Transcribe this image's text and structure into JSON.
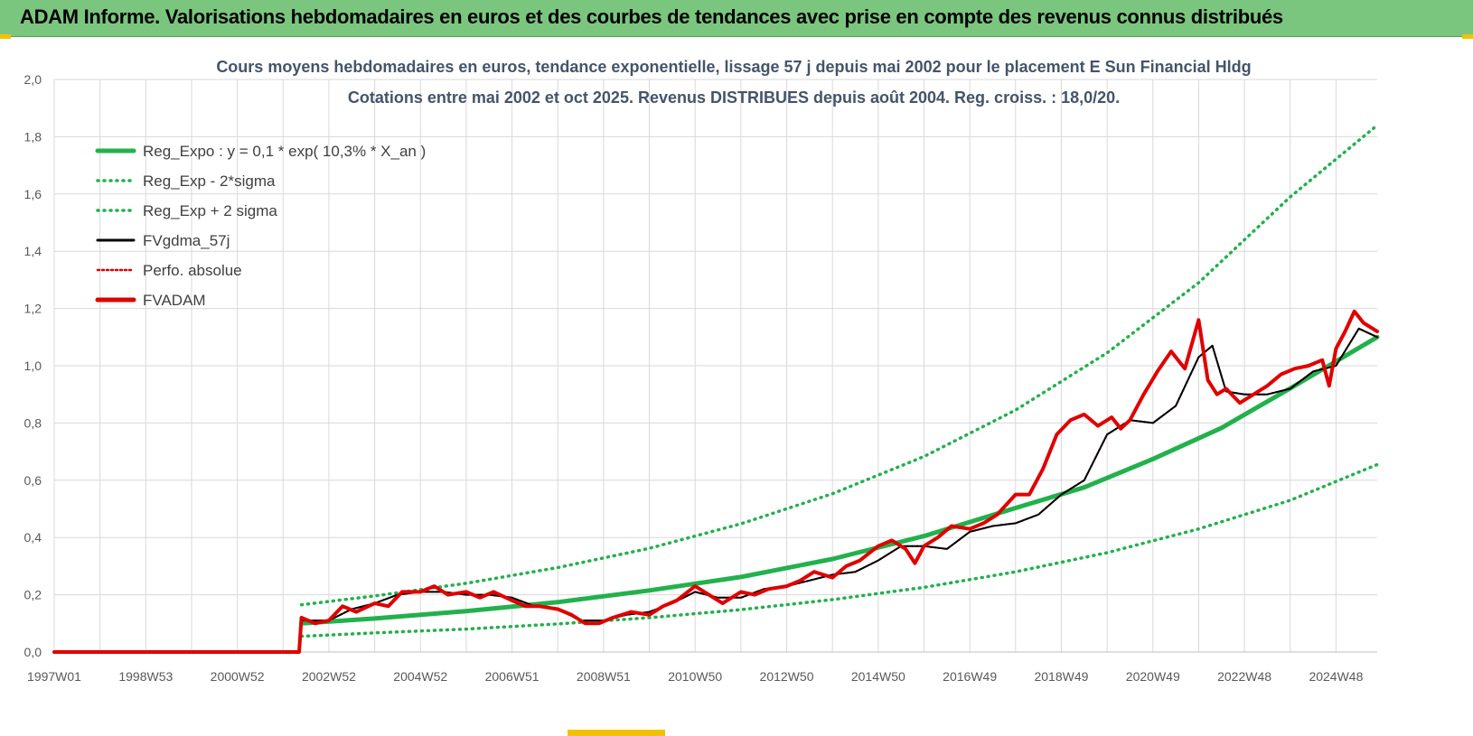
{
  "header": {
    "title": "ADAM Informe. Valorisations hebdomadaires en euros et des courbes de tendances avec prise en compte des revenus connus distribués"
  },
  "chart_data": {
    "type": "line",
    "title": "Cours moyens hebdomadaires en euros, tendance exponentielle, lissage 57 j depuis mai 2002 pour le placement E Sun Financial Hldg",
    "subtitle": "Cotations entre mai 2002 et oct 2025.  Revenus DISTRIBUES depuis août 2004. Reg. croiss. : 18,0/20.",
    "xlabel": "",
    "ylabel": "",
    "ylim": [
      0,
      2.0
    ],
    "xlim": [
      1997.0,
      2025.9
    ],
    "y_ticks": [
      "0,0",
      "0,2",
      "0,4",
      "0,6",
      "0,8",
      "1,0",
      "1,2",
      "1,4",
      "1,6",
      "1,8",
      "2,0"
    ],
    "x_ticks": [
      {
        "label": "1997W01",
        "x": 1997.0
      },
      {
        "label": "1998W53",
        "x": 1999.0
      },
      {
        "label": "2000W52",
        "x": 2001.0
      },
      {
        "label": "2002W52",
        "x": 2003.0
      },
      {
        "label": "2004W52",
        "x": 2005.0
      },
      {
        "label": "2006W51",
        "x": 2007.0
      },
      {
        "label": "2008W51",
        "x": 2009.0
      },
      {
        "label": "2010W50",
        "x": 2011.0
      },
      {
        "label": "2012W50",
        "x": 2013.0
      },
      {
        "label": "2014W50",
        "x": 2015.0
      },
      {
        "label": "2016W49",
        "x": 2017.0
      },
      {
        "label": "2018W49",
        "x": 2019.0
      },
      {
        "label": "2020W49",
        "x": 2021.0
      },
      {
        "label": "2022W48",
        "x": 2023.0
      },
      {
        "label": "2024W48",
        "x": 2025.0
      }
    ],
    "grid": true,
    "legend_position": "top-left",
    "series": [
      {
        "name": "Reg_Expo : y = 0,1 * exp( 10,3% *  X_an )",
        "color": "#22b14c",
        "style": "solid",
        "x": [
          2002.4,
          2004.0,
          2006.0,
          2008.0,
          2010.0,
          2012.0,
          2014.0,
          2016.0,
          2018.0,
          2019.5,
          2021.0,
          2022.5,
          2024.0,
          2025.9
        ],
        "values": [
          0.1,
          0.117,
          0.143,
          0.174,
          0.215,
          0.262,
          0.325,
          0.405,
          0.503,
          0.575,
          0.674,
          0.783,
          0.921,
          1.1
        ]
      },
      {
        "name": "Reg_Exp - 2*sigma",
        "color": "#22b14c",
        "style": "dotted",
        "x": [
          2002.4,
          2004.0,
          2006.0,
          2008.0,
          2010.0,
          2012.0,
          2014.0,
          2016.0,
          2018.0,
          2020.0,
          2022.0,
          2024.0,
          2025.9
        ],
        "values": [
          0.055,
          0.067,
          0.08,
          0.098,
          0.12,
          0.148,
          0.183,
          0.226,
          0.28,
          0.347,
          0.43,
          0.53,
          0.655
        ]
      },
      {
        "name": "Reg_Exp + 2 sigma",
        "color": "#22b14c",
        "style": "dotted",
        "x": [
          2002.4,
          2004.0,
          2006.0,
          2008.0,
          2010.0,
          2012.0,
          2014.0,
          2016.0,
          2018.0,
          2020.0,
          2022.0,
          2024.0,
          2025.9
        ],
        "values": [
          0.165,
          0.196,
          0.24,
          0.295,
          0.362,
          0.448,
          0.553,
          0.683,
          0.845,
          1.045,
          1.29,
          1.59,
          1.84
        ]
      },
      {
        "name": "FVgdma_57j",
        "color": "#000000",
        "style": "solid",
        "x": [
          1997.0,
          2002.35,
          2002.4,
          2003.0,
          2003.5,
          2004.0,
          2004.5,
          2005.0,
          2005.5,
          2006.0,
          2006.5,
          2007.0,
          2007.5,
          2008.0,
          2008.5,
          2009.0,
          2009.5,
          2010.0,
          2010.5,
          2011.0,
          2011.5,
          2012.0,
          2012.5,
          2013.0,
          2013.5,
          2014.0,
          2014.5,
          2015.0,
          2015.5,
          2016.0,
          2016.5,
          2017.0,
          2017.5,
          2018.0,
          2018.5,
          2019.0,
          2019.5,
          2020.0,
          2020.5,
          2021.0,
          2021.5,
          2022.0,
          2022.3,
          2022.6,
          2023.0,
          2023.5,
          2024.0,
          2024.5,
          2025.0,
          2025.5,
          2025.9
        ],
        "values": [
          0.0,
          0.0,
          0.11,
          0.11,
          0.15,
          0.17,
          0.2,
          0.21,
          0.21,
          0.2,
          0.2,
          0.19,
          0.16,
          0.15,
          0.11,
          0.11,
          0.13,
          0.14,
          0.17,
          0.21,
          0.19,
          0.19,
          0.22,
          0.23,
          0.25,
          0.27,
          0.28,
          0.32,
          0.37,
          0.37,
          0.36,
          0.42,
          0.44,
          0.45,
          0.48,
          0.55,
          0.6,
          0.76,
          0.81,
          0.8,
          0.86,
          1.03,
          1.07,
          0.91,
          0.9,
          0.9,
          0.92,
          0.98,
          1.0,
          1.13,
          1.1
        ]
      },
      {
        "name": "Perfo. absolue",
        "color": "#e00000",
        "style": "dotted",
        "x": [
          1997.0,
          2002.35,
          2002.4,
          2003.0,
          2003.5,
          2004.0,
          2004.5,
          2005.0,
          2005.5,
          2006.0,
          2006.5,
          2007.0,
          2007.5,
          2008.0,
          2008.5,
          2009.0,
          2009.5,
          2010.0,
          2010.5,
          2011.0,
          2011.5,
          2012.0,
          2012.5,
          2013.0,
          2013.5,
          2014.0,
          2014.5,
          2015.0,
          2015.5,
          2016.0,
          2016.5,
          2017.0,
          2017.5,
          2018.0,
          2018.5,
          2019.0,
          2019.5,
          2020.0,
          2020.5,
          2021.0,
          2021.5,
          2022.0,
          2022.3,
          2022.6,
          2023.0,
          2023.5,
          2024.0,
          2024.5,
          2025.0,
          2025.5,
          2025.9
        ],
        "values": [
          0.0,
          0.0,
          0.11,
          0.11,
          0.15,
          0.17,
          0.2,
          0.21,
          0.21,
          0.2,
          0.2,
          0.19,
          0.16,
          0.15,
          0.11,
          0.11,
          0.13,
          0.14,
          0.17,
          0.21,
          0.19,
          0.19,
          0.22,
          0.23,
          0.25,
          0.27,
          0.28,
          0.32,
          0.37,
          0.37,
          0.36,
          0.42,
          0.44,
          0.45,
          0.48,
          0.55,
          0.6,
          0.76,
          0.81,
          0.8,
          0.86,
          1.03,
          1.07,
          0.91,
          0.9,
          0.9,
          0.92,
          0.98,
          1.0,
          1.13,
          1.1
        ]
      },
      {
        "name": "FVADAM",
        "color": "#e00000",
        "style": "solid",
        "x": [
          1997.0,
          2002.35,
          2002.4,
          2002.7,
          2003.0,
          2003.3,
          2003.6,
          2004.0,
          2004.3,
          2004.6,
          2005.0,
          2005.3,
          2005.6,
          2006.0,
          2006.3,
          2006.6,
          2007.0,
          2007.3,
          2007.6,
          2008.0,
          2008.3,
          2008.6,
          2008.9,
          2009.2,
          2009.6,
          2010.0,
          2010.3,
          2010.6,
          2011.0,
          2011.3,
          2011.6,
          2012.0,
          2012.3,
          2012.6,
          2013.0,
          2013.3,
          2013.6,
          2014.0,
          2014.3,
          2014.6,
          2015.0,
          2015.3,
          2015.6,
          2015.8,
          2016.0,
          2016.3,
          2016.6,
          2017.0,
          2017.3,
          2017.6,
          2018.0,
          2018.3,
          2018.6,
          2018.9,
          2019.2,
          2019.5,
          2019.8,
          2020.1,
          2020.3,
          2020.5,
          2020.8,
          2021.1,
          2021.4,
          2021.7,
          2022.0,
          2022.2,
          2022.4,
          2022.6,
          2022.9,
          2023.2,
          2023.5,
          2023.8,
          2024.1,
          2024.4,
          2024.7,
          2024.85,
          2025.0,
          2025.2,
          2025.4,
          2025.6,
          2025.9
        ],
        "values": [
          0.0,
          0.0,
          0.12,
          0.1,
          0.11,
          0.16,
          0.14,
          0.17,
          0.16,
          0.21,
          0.21,
          0.23,
          0.2,
          0.21,
          0.19,
          0.21,
          0.18,
          0.16,
          0.16,
          0.15,
          0.13,
          0.1,
          0.1,
          0.12,
          0.14,
          0.13,
          0.16,
          0.18,
          0.23,
          0.2,
          0.17,
          0.21,
          0.2,
          0.22,
          0.23,
          0.25,
          0.28,
          0.26,
          0.3,
          0.32,
          0.37,
          0.39,
          0.36,
          0.31,
          0.37,
          0.4,
          0.44,
          0.43,
          0.45,
          0.48,
          0.55,
          0.55,
          0.64,
          0.76,
          0.81,
          0.83,
          0.79,
          0.82,
          0.78,
          0.81,
          0.9,
          0.98,
          1.05,
          0.99,
          1.16,
          0.95,
          0.9,
          0.92,
          0.87,
          0.9,
          0.93,
          0.97,
          0.99,
          1.0,
          1.02,
          0.93,
          1.06,
          1.12,
          1.19,
          1.15,
          1.12
        ]
      }
    ]
  }
}
